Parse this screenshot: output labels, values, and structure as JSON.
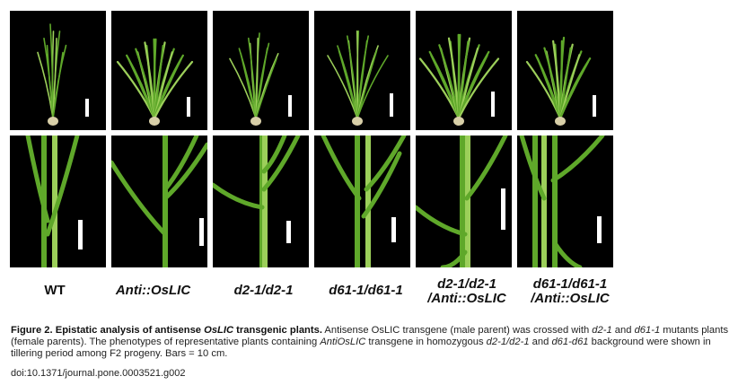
{
  "figure": {
    "panel_labels": [
      "WT",
      "Anti::OsLIC",
      "d2-1/d2-1",
      "d61-1/d61-1",
      "d2-1/d2-1 /Anti::OsLIC",
      "d61-1/d61-1 /Anti::OsLIC"
    ],
    "label_lines": [
      [
        "WT"
      ],
      [
        "Anti::OsLIC"
      ],
      [
        "d2-1/d2-1"
      ],
      [
        "d61-1/d61-1"
      ],
      [
        "d2-1/d2-1",
        "/Anti::OsLIC"
      ],
      [
        "d61-1/d61-1",
        "/Anti::OsLIC"
      ]
    ],
    "colors": {
      "background": "#000000",
      "leaf": "#5fa82a",
      "leaf_light": "#9ccf5a",
      "roots": "#d8cfa8",
      "scale_bar": "#ffffff"
    }
  },
  "caption": {
    "title_prefix": "Figure 2. Epistatic analysis of antisense ",
    "title_gene": "OsLIC",
    "title_suffix": " transgenic plants.",
    "t1": " Antisense OsLIC transgene (male parent) was crossed with ",
    "g1": "d2-1",
    "t2": " and ",
    "g2": "d61-1",
    "t3": " mutants plants (female parents). The phenotypes of representative plants containing ",
    "g3": "AntiOsLIC",
    "t4": " transgene in homozygous ",
    "g4": "d2-1/d2-1",
    "t5": " and ",
    "g5": "d61-d61",
    "t6": " background were shown in tillering period among F2 progeny. Bars = 10 cm.",
    "doi": "doi:10.1371/journal.pone.0003521.g002"
  }
}
